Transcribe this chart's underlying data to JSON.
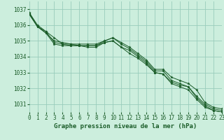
{
  "xlabel": "Graphe pression niveau de la mer (hPa)",
  "x_ticks": [
    0,
    1,
    2,
    3,
    4,
    5,
    6,
    7,
    8,
    9,
    10,
    11,
    12,
    13,
    14,
    15,
    16,
    17,
    18,
    19,
    20,
    21,
    22,
    23
  ],
  "ylim": [
    1030.5,
    1037.5
  ],
  "yticks": [
    1031,
    1032,
    1033,
    1034,
    1035,
    1036,
    1037
  ],
  "xlim": [
    0,
    23
  ],
  "bg_color": "#cceedd",
  "grid_color": "#99ccbb",
  "line_color": "#1a5c28",
  "marker_color": "#1a5c28",
  "series": [
    [
      1036.8,
      1036.0,
      1035.6,
      1035.2,
      1034.8,
      1034.8,
      1034.8,
      1034.8,
      1034.8,
      1035.0,
      1035.2,
      1034.9,
      1034.6,
      1034.2,
      1033.8,
      1033.2,
      1033.2,
      1032.7,
      1032.5,
      1032.3,
      1031.9,
      1031.1,
      1030.8,
      1030.7
    ],
    [
      1036.8,
      1035.9,
      1035.5,
      1035.0,
      1034.9,
      1034.8,
      1034.7,
      1034.7,
      1034.7,
      1035.0,
      1035.2,
      1034.8,
      1034.5,
      1034.1,
      1033.7,
      1033.1,
      1033.1,
      1032.5,
      1032.3,
      1032.1,
      1031.5,
      1031.0,
      1030.7,
      1030.6
    ],
    [
      1036.7,
      1035.9,
      1035.5,
      1034.8,
      1034.7,
      1034.7,
      1034.7,
      1034.6,
      1034.6,
      1034.9,
      1035.0,
      1034.6,
      1034.2,
      1033.9,
      1033.5,
      1033.0,
      1032.9,
      1032.4,
      1032.2,
      1032.1,
      1031.4,
      1030.9,
      1030.6,
      1030.5
    ],
    [
      1036.7,
      1035.9,
      1035.6,
      1034.9,
      1034.8,
      1034.7,
      1034.7,
      1034.7,
      1034.7,
      1034.9,
      1035.0,
      1034.6,
      1034.4,
      1034.0,
      1033.6,
      1033.0,
      1032.9,
      1032.3,
      1032.1,
      1031.9,
      1031.3,
      1030.8,
      1030.6,
      1030.5
    ]
  ],
  "label_fontsize": 6.5,
  "tick_fontsize": 5.5
}
